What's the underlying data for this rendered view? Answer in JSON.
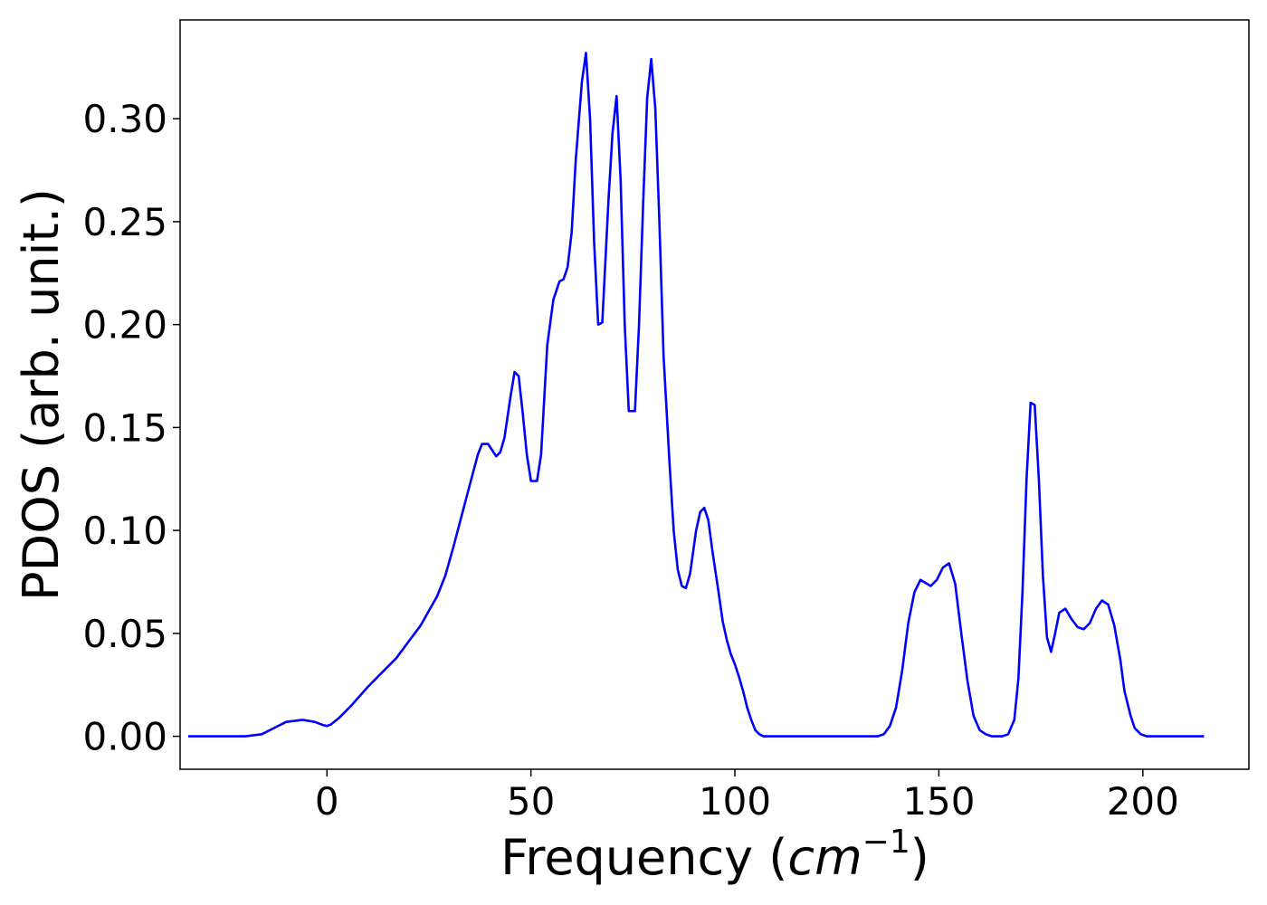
{
  "chart_data": {
    "type": "line",
    "title": "",
    "xlabel": "Frequency (",
    "xlabel_math": "cm",
    "xlabel_sup": "−1",
    "xlabel_end": ")",
    "ylabel": "PDOS (arb. unit.)",
    "xlim": [
      -36,
      226
    ],
    "ylim": [
      -0.016,
      0.348
    ],
    "xticks": [
      0,
      50,
      100,
      150,
      200
    ],
    "xtick_labels": [
      "0",
      "50",
      "100",
      "150",
      "200"
    ],
    "yticks": [
      0.0,
      0.05,
      0.1,
      0.15,
      0.2,
      0.25,
      0.3
    ],
    "ytick_labels": [
      "0.00",
      "0.05",
      "0.10",
      "0.15",
      "0.20",
      "0.25",
      "0.30"
    ],
    "grid": false,
    "legend": "none",
    "colors": {
      "line": "#0000ff",
      "axes": "#000000",
      "background": "#ffffff"
    },
    "series": [
      {
        "points": [
          [
            -34,
            0.0
          ],
          [
            -20,
            0.0
          ],
          [
            -16,
            0.001
          ],
          [
            -13,
            0.004
          ],
          [
            -10,
            0.007
          ],
          [
            -6,
            0.008
          ],
          [
            -3,
            0.007
          ],
          [
            -1,
            0.0055
          ],
          [
            0,
            0.005
          ],
          [
            1,
            0.0058
          ],
          [
            3,
            0.009
          ],
          [
            6,
            0.015
          ],
          [
            10,
            0.024
          ],
          [
            14,
            0.032
          ],
          [
            17,
            0.038
          ],
          [
            20,
            0.046
          ],
          [
            23,
            0.054
          ],
          [
            25,
            0.061
          ],
          [
            27,
            0.068
          ],
          [
            29,
            0.078
          ],
          [
            31,
            0.092
          ],
          [
            33,
            0.107
          ],
          [
            35,
            0.122
          ],
          [
            37,
            0.137
          ],
          [
            38,
            0.142
          ],
          [
            39.5,
            0.142
          ],
          [
            40.5,
            0.139
          ],
          [
            41.5,
            0.136
          ],
          [
            42.5,
            0.138
          ],
          [
            43.5,
            0.145
          ],
          [
            45,
            0.165
          ],
          [
            46,
            0.177
          ],
          [
            47,
            0.175
          ],
          [
            48,
            0.157
          ],
          [
            49,
            0.137
          ],
          [
            50,
            0.124
          ],
          [
            51.5,
            0.124
          ],
          [
            52.5,
            0.137
          ],
          [
            54,
            0.19
          ],
          [
            55.5,
            0.212
          ],
          [
            57,
            0.221
          ],
          [
            58,
            0.222
          ],
          [
            59,
            0.228
          ],
          [
            60,
            0.245
          ],
          [
            61,
            0.28
          ],
          [
            62.5,
            0.318
          ],
          [
            63.5,
            0.332
          ],
          [
            64.5,
            0.3
          ],
          [
            65.5,
            0.24
          ],
          [
            66.5,
            0.2
          ],
          [
            67.5,
            0.201
          ],
          [
            69,
            0.26
          ],
          [
            70,
            0.293
          ],
          [
            71,
            0.311
          ],
          [
            72,
            0.27
          ],
          [
            73,
            0.2
          ],
          [
            74,
            0.158
          ],
          [
            75.5,
            0.158
          ],
          [
            76.5,
            0.2
          ],
          [
            77.5,
            0.258
          ],
          [
            78.5,
            0.31
          ],
          [
            79.5,
            0.329
          ],
          [
            80.5,
            0.305
          ],
          [
            81.5,
            0.25
          ],
          [
            82.5,
            0.185
          ],
          [
            84,
            0.132
          ],
          [
            85,
            0.1
          ],
          [
            86,
            0.081
          ],
          [
            87,
            0.073
          ],
          [
            88,
            0.072
          ],
          [
            89,
            0.079
          ],
          [
            90.5,
            0.1
          ],
          [
            91.5,
            0.109
          ],
          [
            92.5,
            0.111
          ],
          [
            93.5,
            0.105
          ],
          [
            94.5,
            0.09
          ],
          [
            96,
            0.07
          ],
          [
            97,
            0.056
          ],
          [
            98,
            0.047
          ],
          [
            99,
            0.04
          ],
          [
            100,
            0.035
          ],
          [
            101,
            0.029
          ],
          [
            102,
            0.022
          ],
          [
            103,
            0.014
          ],
          [
            104,
            0.008
          ],
          [
            105,
            0.003
          ],
          [
            106,
            0.001
          ],
          [
            107,
            0.0
          ],
          [
            135,
            0.0
          ],
          [
            136.5,
            0.001
          ],
          [
            138,
            0.005
          ],
          [
            139.5,
            0.014
          ],
          [
            141,
            0.032
          ],
          [
            142.5,
            0.055
          ],
          [
            144,
            0.07
          ],
          [
            145.5,
            0.076
          ],
          [
            148,
            0.073
          ],
          [
            149.5,
            0.076
          ],
          [
            151,
            0.082
          ],
          [
            152.5,
            0.084
          ],
          [
            154,
            0.074
          ],
          [
            155.5,
            0.05
          ],
          [
            157,
            0.027
          ],
          [
            158.5,
            0.01
          ],
          [
            160,
            0.003
          ],
          [
            161.5,
            0.001
          ],
          [
            163,
            0.0
          ],
          [
            165.5,
            0.0
          ],
          [
            167,
            0.001
          ],
          [
            168.5,
            0.008
          ],
          [
            169.5,
            0.028
          ],
          [
            170.5,
            0.07
          ],
          [
            171.5,
            0.125
          ],
          [
            172.5,
            0.162
          ],
          [
            173.5,
            0.161
          ],
          [
            174.5,
            0.125
          ],
          [
            175.5,
            0.078
          ],
          [
            176.5,
            0.048
          ],
          [
            177.5,
            0.041
          ],
          [
            178.5,
            0.05
          ],
          [
            179.5,
            0.06
          ],
          [
            181,
            0.062
          ],
          [
            182.5,
            0.057
          ],
          [
            184,
            0.053
          ],
          [
            185.5,
            0.052
          ],
          [
            187,
            0.055
          ],
          [
            188.5,
            0.062
          ],
          [
            190,
            0.066
          ],
          [
            191.5,
            0.064
          ],
          [
            193,
            0.054
          ],
          [
            194.5,
            0.037
          ],
          [
            195.5,
            0.022
          ],
          [
            197,
            0.01
          ],
          [
            198,
            0.004
          ],
          [
            199.5,
            0.001
          ],
          [
            201,
            0.0
          ],
          [
            215,
            0.0
          ]
        ]
      }
    ]
  }
}
